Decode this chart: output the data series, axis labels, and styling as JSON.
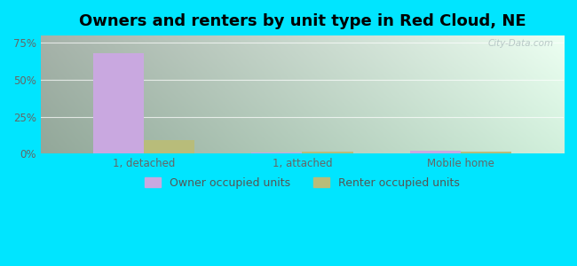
{
  "title": "Owners and renters by unit type in Red Cloud, NE",
  "categories": [
    "1, detached",
    "1, attached",
    "Mobile home"
  ],
  "owner_values": [
    68.0,
    0.8,
    2.2
  ],
  "renter_values": [
    9.5,
    1.5,
    1.2
  ],
  "owner_color": "#c9a8e0",
  "renter_color": "#b8bc7a",
  "ylim": [
    0,
    80
  ],
  "yticks": [
    0,
    25,
    50,
    75
  ],
  "ytick_labels": [
    "0%",
    "25%",
    "50%",
    "75%"
  ],
  "bg_color_topleft": "#d4eedd",
  "bg_color_topright": "#edfcf2",
  "bg_color_bottomleft": "#d8f0da",
  "bg_color_bottomright": "#f5fff6",
  "outer_bg": "#00e5ff",
  "bar_width": 0.32,
  "legend_labels": [
    "Owner occupied units",
    "Renter occupied units"
  ],
  "watermark": "City-Data.com",
  "title_fontsize": 13,
  "axis_fontsize": 8.5,
  "legend_fontsize": 9
}
